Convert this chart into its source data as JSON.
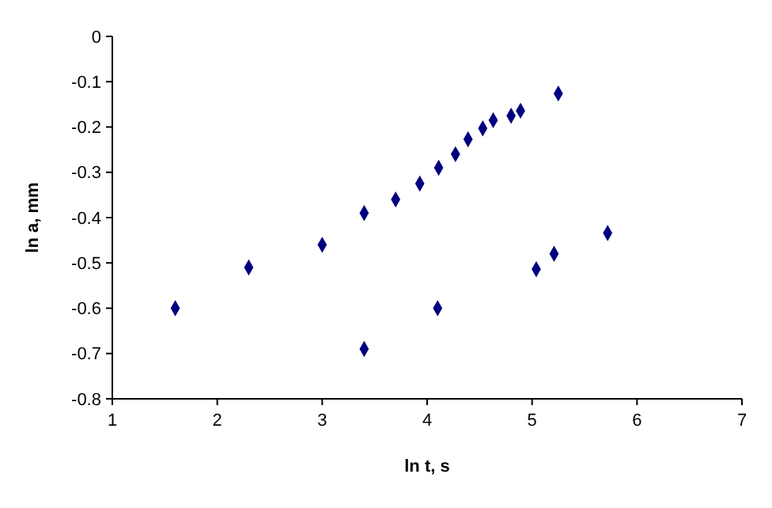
{
  "chart_data": {
    "type": "scatter",
    "xlabel": "ln t, s",
    "ylabel": "ln a, mm",
    "marker": "diamond",
    "xlim": [
      1,
      7
    ],
    "xticks": [
      1,
      2,
      3,
      4,
      5,
      6,
      7
    ],
    "ylim": [
      -0.8,
      0
    ],
    "yticks": [
      -0.8,
      -0.7,
      -0.6,
      -0.5,
      -0.4,
      -0.3,
      -0.2,
      -0.1,
      0
    ],
    "series": [
      {
        "color": "#000080",
        "x": [
          1.6,
          2.3,
          3.0,
          3.4,
          3.4,
          3.7,
          3.93,
          4.11,
          4.1,
          4.27,
          4.39,
          4.53,
          4.63,
          4.8,
          4.89,
          5.04,
          5.21,
          5.25,
          5.72
        ],
        "values": [
          -0.6,
          -0.51,
          -0.46,
          -0.39,
          -0.69,
          -0.36,
          -0.325,
          -0.29,
          -0.6,
          -0.26,
          -0.227,
          -0.203,
          -0.185,
          -0.175,
          -0.164,
          -0.514,
          -0.48,
          -0.126,
          -0.434
        ]
      }
    ]
  }
}
